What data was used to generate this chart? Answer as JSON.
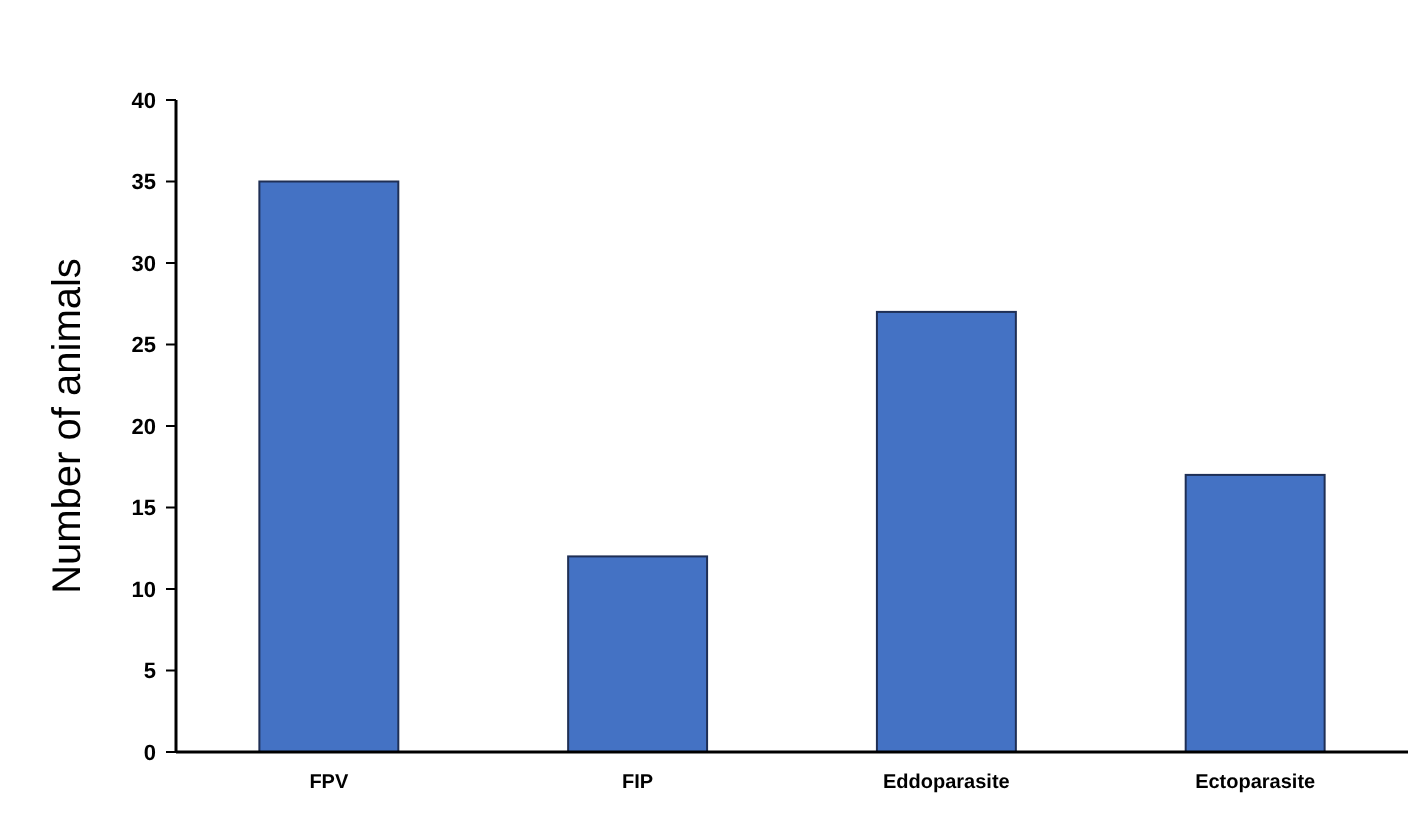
{
  "chart_data": {
    "type": "bar",
    "ylabel": "Number of animals",
    "categories": [
      "FPV",
      "FIP",
      "Eddoparasite",
      "Ectoparasite"
    ],
    "values": [
      35,
      12,
      27,
      17
    ],
    "color": "#4472c4",
    "ylim": [
      0,
      40
    ],
    "yticks": [
      0,
      5,
      10,
      15,
      20,
      25,
      30,
      35,
      40
    ],
    "grid": false
  }
}
